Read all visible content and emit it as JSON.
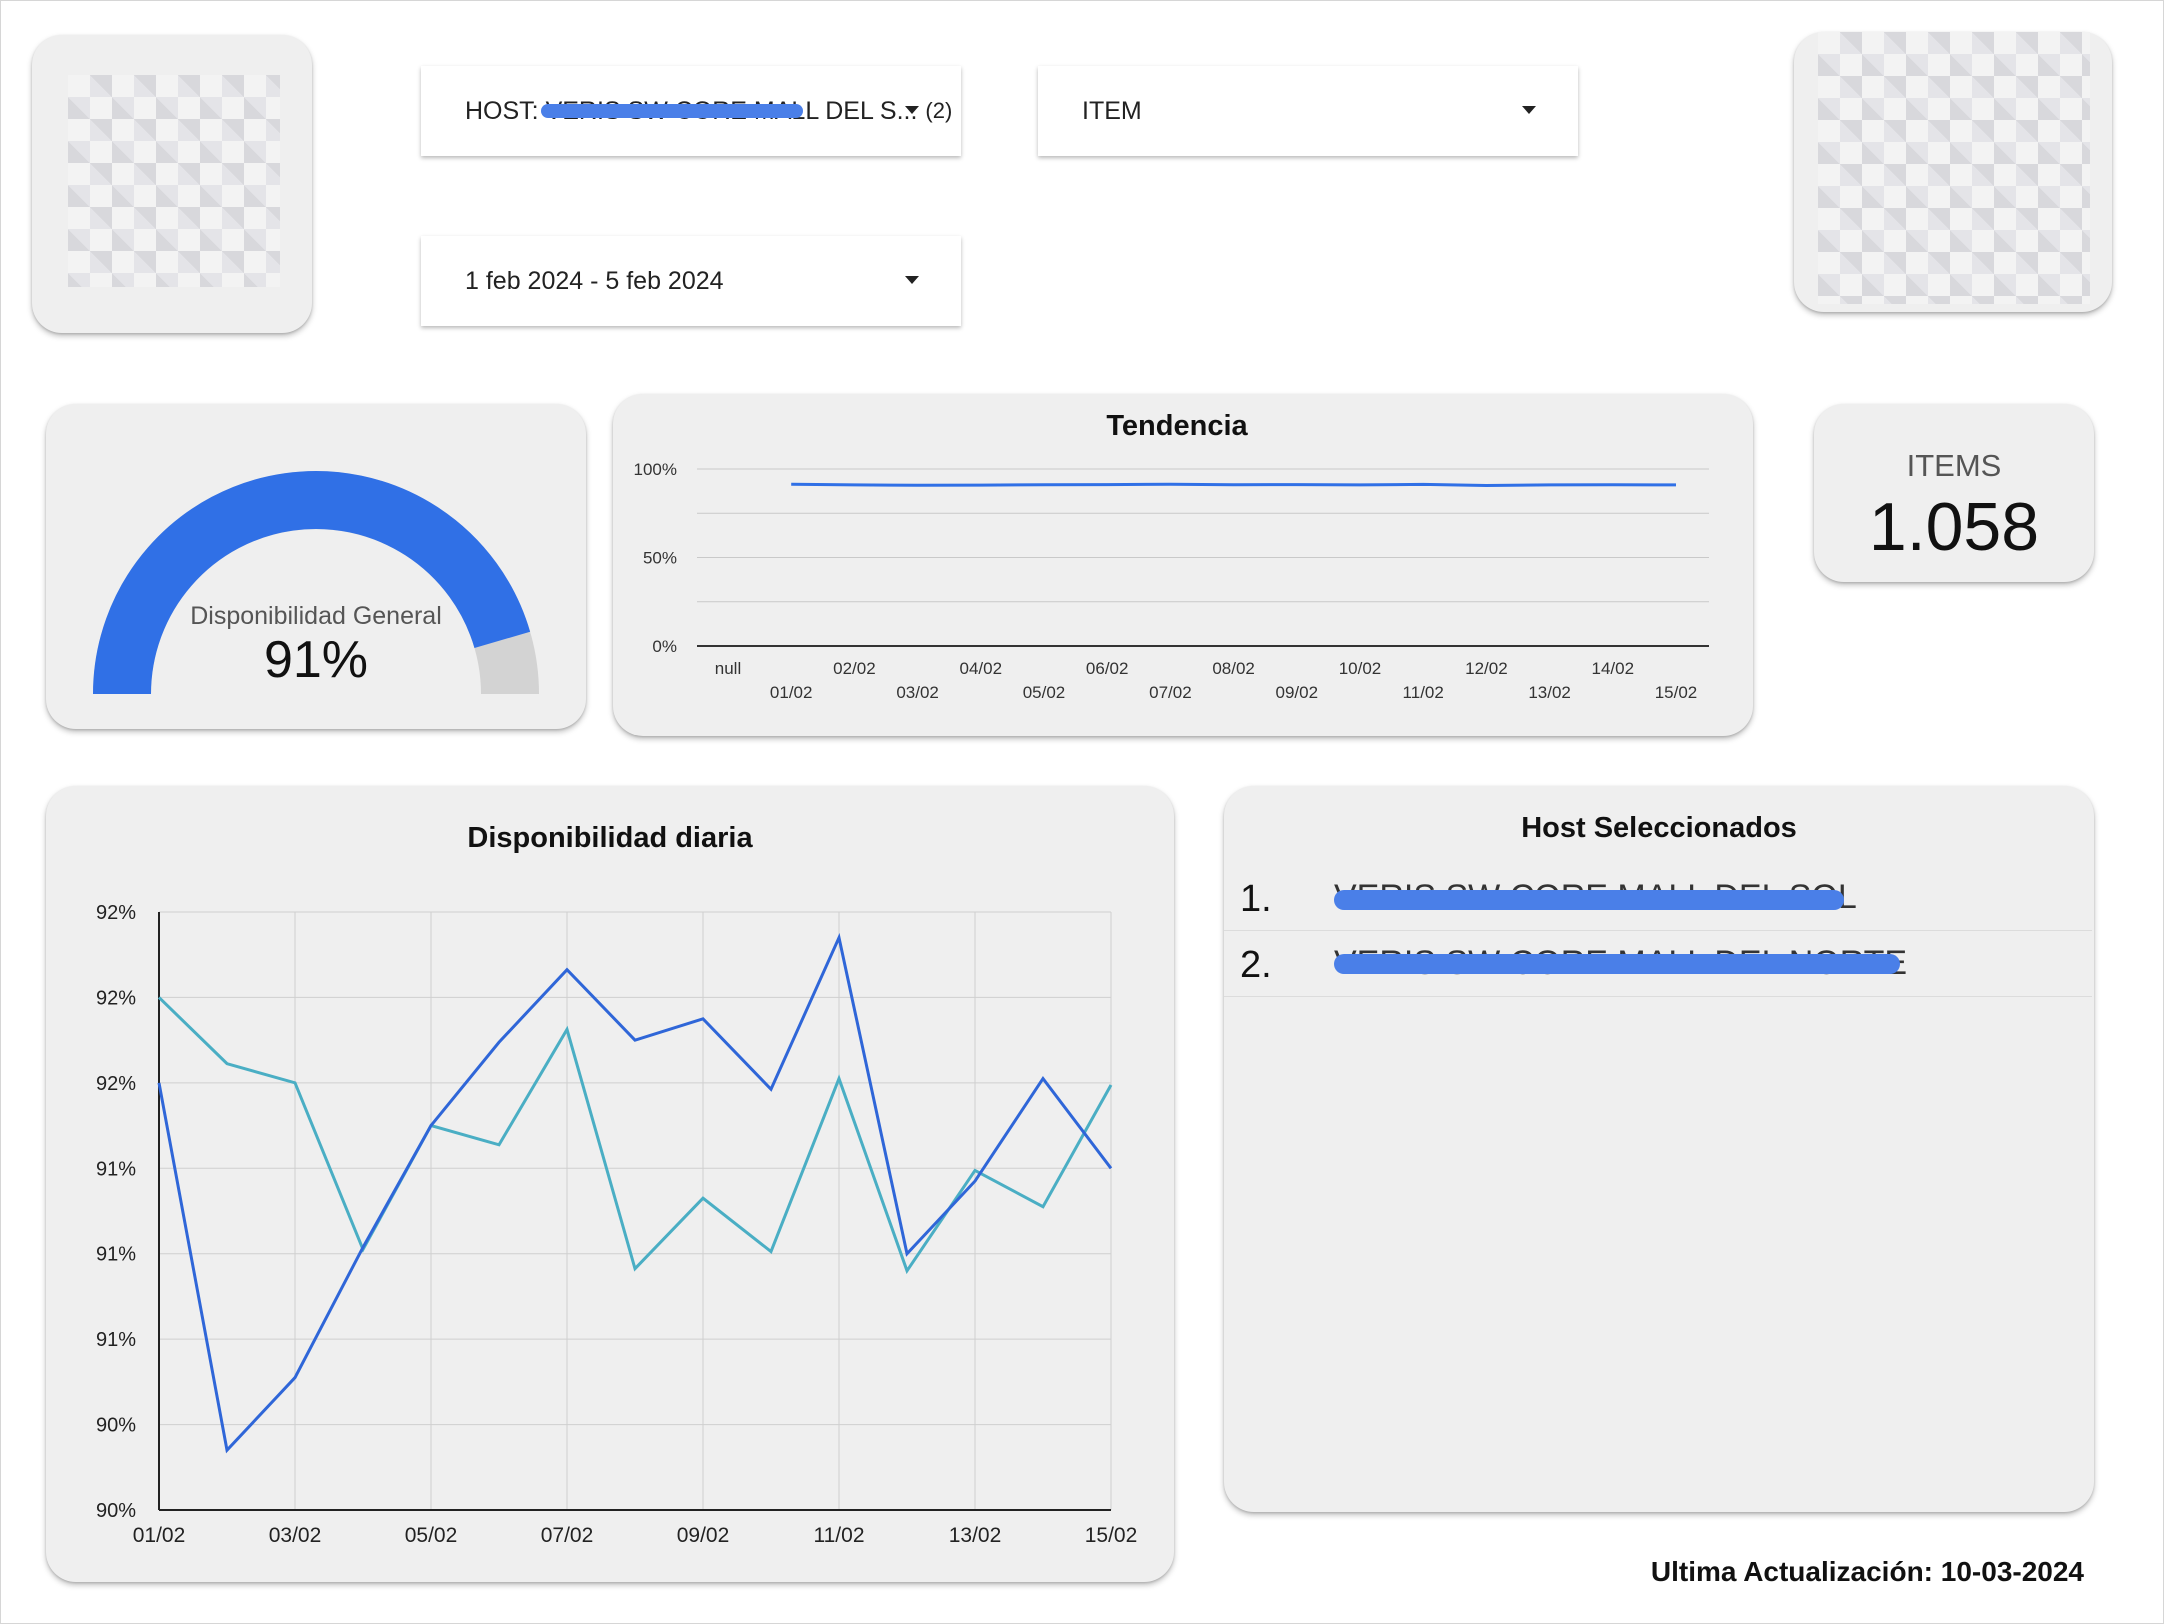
{
  "filters": {
    "host_label": "HOST: VERIS SW CORE MALL DEL S...",
    "host_count": "(2)",
    "item_label": "ITEM",
    "date_range": "1 feb 2024 - 5 feb 2024"
  },
  "gauge": {
    "label": "Disponibilidad General",
    "value": "91%",
    "fraction": 0.91,
    "color": "#3070e6",
    "track_color": "#d3d3d3"
  },
  "items_card": {
    "label": "ITEMS",
    "value": "1.058"
  },
  "tendencia": {
    "title": "Tendencia"
  },
  "hosts": {
    "title": "Host Seleccionados",
    "items": [
      {
        "num": "1.",
        "name": "VERIS SW CORE MALL DEL SOL"
      },
      {
        "num": "2.",
        "name": "VERIS SW CORE MALL DEL NORTE"
      }
    ]
  },
  "diaria": {
    "title": "Disponibilidad diaria"
  },
  "footer": {
    "last_update": "Ultima Actualización: 10-03-2024"
  },
  "chart_data": [
    {
      "type": "line",
      "title": "Tendencia",
      "x": [
        "null",
        "01/02",
        "02/02",
        "03/02",
        "04/02",
        "05/02",
        "06/02",
        "07/02",
        "08/02",
        "09/02",
        "10/02",
        "11/02",
        "12/02",
        "13/02",
        "14/02",
        "15/02"
      ],
      "y_ticks": [
        "100%",
        "50%",
        "0%"
      ],
      "ylim": [
        0,
        100
      ],
      "grid": true,
      "series": [
        {
          "color": "#3070e6",
          "values": [
            null,
            91.4,
            91.0,
            90.8,
            90.9,
            91.1,
            91.2,
            91.4,
            91.1,
            91.2,
            91.0,
            91.3,
            90.7,
            91.0,
            91.1,
            91.0
          ]
        }
      ]
    },
    {
      "type": "line",
      "title": "Disponibilidad diaria",
      "x": [
        "01/02",
        "02/02",
        "03/02",
        "04/02",
        "05/02",
        "06/02",
        "07/02",
        "08/02",
        "09/02",
        "10/02",
        "11/02",
        "12/02",
        "13/02",
        "14/02",
        "15/02"
      ],
      "x_tick_labels": [
        "01/02",
        "03/02",
        "05/02",
        "07/02",
        "09/02",
        "11/02",
        "13/02",
        "15/02"
      ],
      "y_ticks": [
        "92%",
        "92%",
        "92%",
        "91%",
        "91%",
        "91%",
        "90%",
        "90%"
      ],
      "ylim": [
        89.8,
        92.6
      ],
      "grid": true,
      "series": [
        {
          "color": "#2f66d8",
          "values": [
            91.8,
            90.08,
            90.42,
            91.03,
            91.6,
            91.99,
            92.33,
            92.0,
            92.1,
            91.77,
            92.48,
            91.0,
            91.34,
            91.82,
            91.4
          ]
        },
        {
          "color": "#4aaec4",
          "values": [
            92.2,
            91.89,
            91.8,
            91.02,
            91.6,
            91.51,
            92.05,
            90.93,
            91.26,
            91.01,
            91.82,
            90.92,
            91.39,
            91.22,
            91.79
          ]
        }
      ]
    }
  ]
}
